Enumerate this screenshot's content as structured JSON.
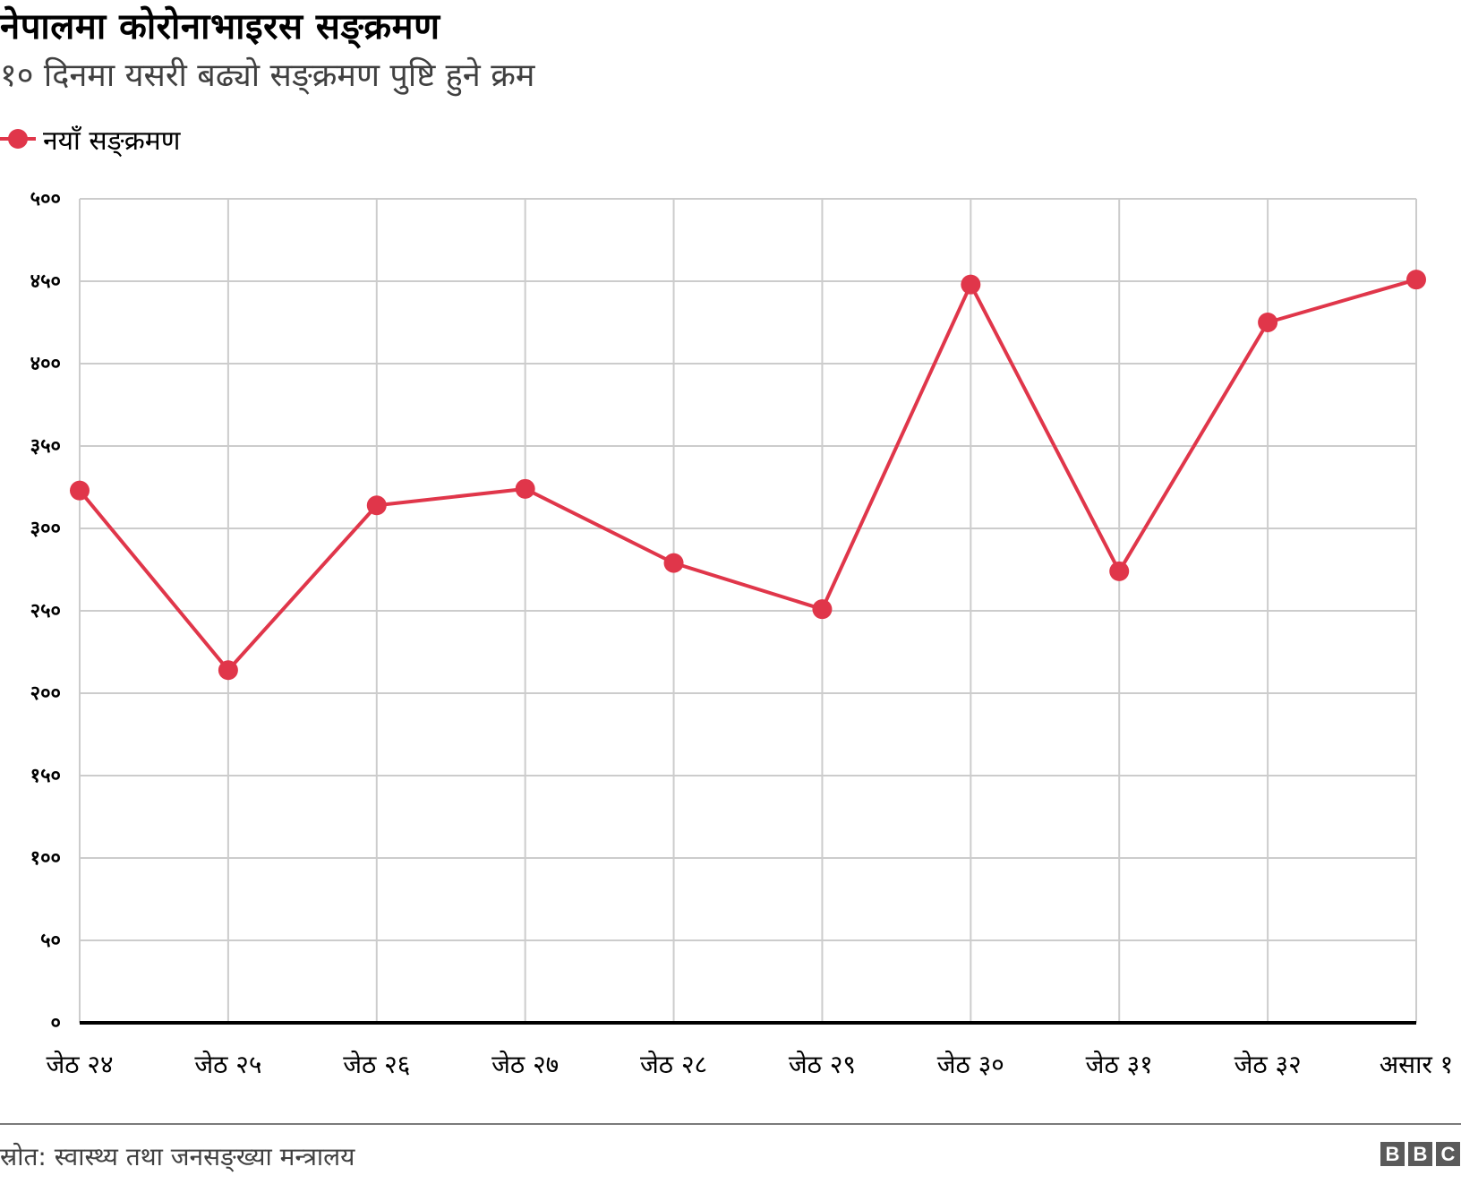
{
  "header": {
    "title": "नेपालमा कोरोनाभाइरस सङ्क्रमण",
    "subtitle": "१० दिनमा यसरी बढ्यो सङ्क्रमण पुष्टि हुने क्रम"
  },
  "legend": {
    "label": "नयाँ सङ्क्रमण",
    "color": "#e0364a"
  },
  "footer": {
    "source": "स्रोत: स्वास्थ्य तथा जनसङ्ख्या मन्त्रालय",
    "logo": [
      "B",
      "B",
      "C"
    ]
  },
  "colors": {
    "series": "#e0364a",
    "grid": "#cccccc",
    "axis": "#000000"
  },
  "chart_data": {
    "type": "line",
    "title": "नेपालमा कोरोनाभाइरस सङ्क्रमण",
    "subtitle": "१० दिनमा यसरी बढ्यो सङ्क्रमण पुष्टि हुने क्रम",
    "xlabel": "",
    "ylabel": "",
    "categories": [
      "जेठ २४",
      "जेठ २५",
      "जेठ २६",
      "जेठ २७",
      "जेठ २८",
      "जेठ २९",
      "जेठ ३०",
      "जेठ ३१",
      "जेठ ३२",
      "असार १"
    ],
    "series": [
      {
        "name": "नयाँ सङ्क्रमण",
        "color": "#e0364a",
        "values": [
          323,
          214,
          314,
          324,
          279,
          251,
          448,
          274,
          425,
          451
        ]
      }
    ],
    "ylim": [
      0,
      500
    ],
    "yticks": [
      0,
      50,
      100,
      150,
      200,
      250,
      300,
      350,
      400,
      450,
      500
    ],
    "ytick_labels": [
      "०",
      "५०",
      "१००",
      "१५०",
      "२००",
      "२५०",
      "३००",
      "३५०",
      "४००",
      "४५०",
      "५००"
    ],
    "grid": true,
    "legend_position": "top-left",
    "source": "स्रोत: स्वास्थ्य तथा जनसङ्ख्या मन्त्रालय"
  }
}
